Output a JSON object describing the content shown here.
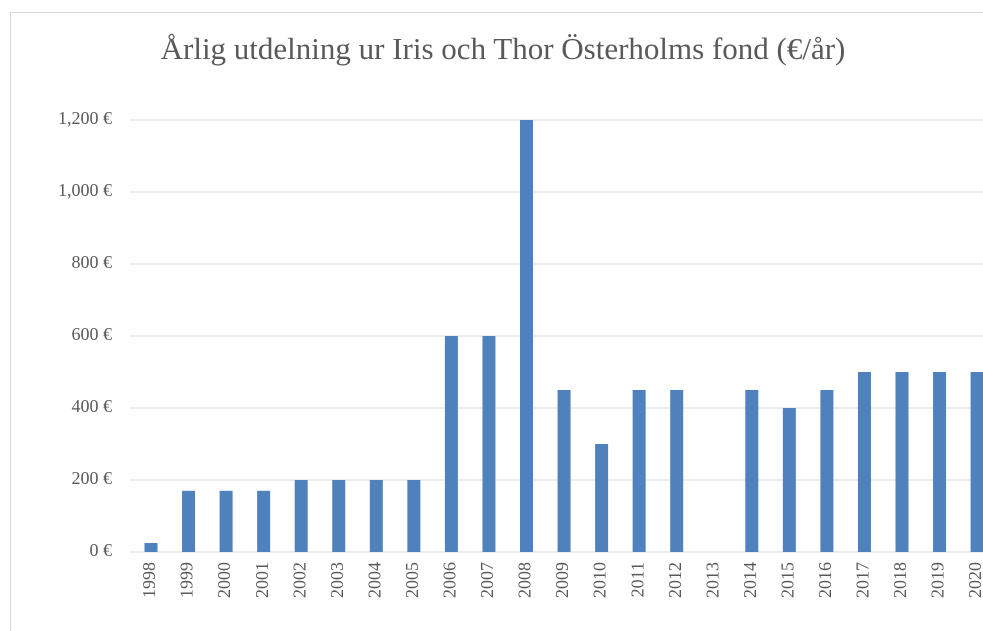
{
  "chart_data": {
    "type": "bar",
    "title": "Årlig utdelning ur Iris och Thor Österholms fond (€/år)",
    "categories": [
      "1998",
      "1999",
      "2000",
      "2001",
      "2002",
      "2003",
      "2004",
      "2005",
      "2006",
      "2007",
      "2008",
      "2009",
      "2010",
      "2011",
      "2012",
      "2013",
      "2014",
      "2015",
      "2016",
      "2017",
      "2018",
      "2019",
      "2020"
    ],
    "values": [
      25,
      170,
      170,
      170,
      200,
      200,
      200,
      200,
      600,
      600,
      1200,
      450,
      300,
      450,
      450,
      0,
      450,
      400,
      450,
      500,
      500,
      500,
      500
    ],
    "color": "#4f81bd",
    "ylim": [
      0,
      1200
    ],
    "yticks": [
      {
        "value": 0,
        "label": "0 €"
      },
      {
        "value": 200,
        "label": "200 €"
      },
      {
        "value": 400,
        "label": "400 €"
      },
      {
        "value": 600,
        "label": "600 €"
      },
      {
        "value": 800,
        "label": "800 €"
      },
      {
        "value": 1000,
        "label": "1,000 €"
      },
      {
        "value": 1200,
        "label": "1,200 €"
      }
    ],
    "grid": true
  }
}
